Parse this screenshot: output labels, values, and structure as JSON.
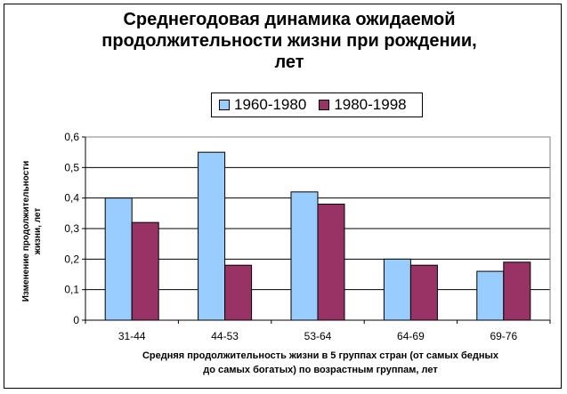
{
  "chart_data": {
    "type": "bar",
    "title": "Среднегодовая динамика ожидаемой\nпродолжительности жизни при рождении,\nлет",
    "ylabel": "Изменение продолжительности\nжизни, лет",
    "xlabel": "Средняя продолжительность жизни в 5 группах стран (от самых бедных\nдо самых богатых) по возрастным группам, лет",
    "categories": [
      "31-44",
      "44-53",
      "53-64",
      "64-69",
      "69-76"
    ],
    "ylim": [
      0,
      0.6
    ],
    "yticks": [
      "0",
      "0,1",
      "0,2",
      "0,3",
      "0,4",
      "0,5",
      "0,6"
    ],
    "grid": true,
    "legend_position": "top",
    "series": [
      {
        "name": "1960-1980",
        "color": "#99CCFF",
        "values": [
          0.4,
          0.55,
          0.42,
          0.2,
          0.16
        ]
      },
      {
        "name": "1980-1998",
        "color": "#993366",
        "values": [
          0.32,
          0.18,
          0.38,
          0.18,
          0.19
        ]
      }
    ]
  }
}
